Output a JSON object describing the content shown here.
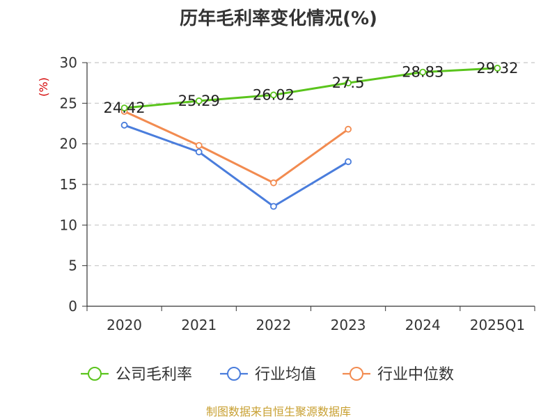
{
  "title": "历年毛利率变化情况(%)",
  "source": "制图数据来自恒生聚源数据库",
  "chart_data": {
    "type": "line",
    "title": "历年毛利率变化情况(%)",
    "ylabel": "(%)",
    "categories": [
      "2020",
      "2021",
      "2022",
      "2023",
      "2024",
      "2025Q1"
    ],
    "ylim": [
      0,
      30
    ],
    "yticks": [
      0,
      5,
      10,
      15,
      20,
      25,
      30
    ],
    "grid": "horizontal dashed",
    "legend_position": "bottom",
    "series": [
      {
        "name": "公司毛利率",
        "color": "#5ac41c",
        "values": [
          24.42,
          25.29,
          26.02,
          27.5,
          28.83,
          29.32
        ],
        "labels": [
          "24.42",
          "25.29",
          "26.02",
          "27.5",
          "28.83",
          "29.32"
        ],
        "show_labels": true
      },
      {
        "name": "行业均值",
        "color": "#4a7ddc",
        "values": [
          22.3,
          19.0,
          12.3,
          17.8,
          null,
          null
        ],
        "show_labels": false
      },
      {
        "name": "行业中位数",
        "color": "#f28b50",
        "values": [
          24.0,
          19.8,
          15.2,
          21.8,
          null,
          null
        ],
        "show_labels": false
      }
    ]
  }
}
